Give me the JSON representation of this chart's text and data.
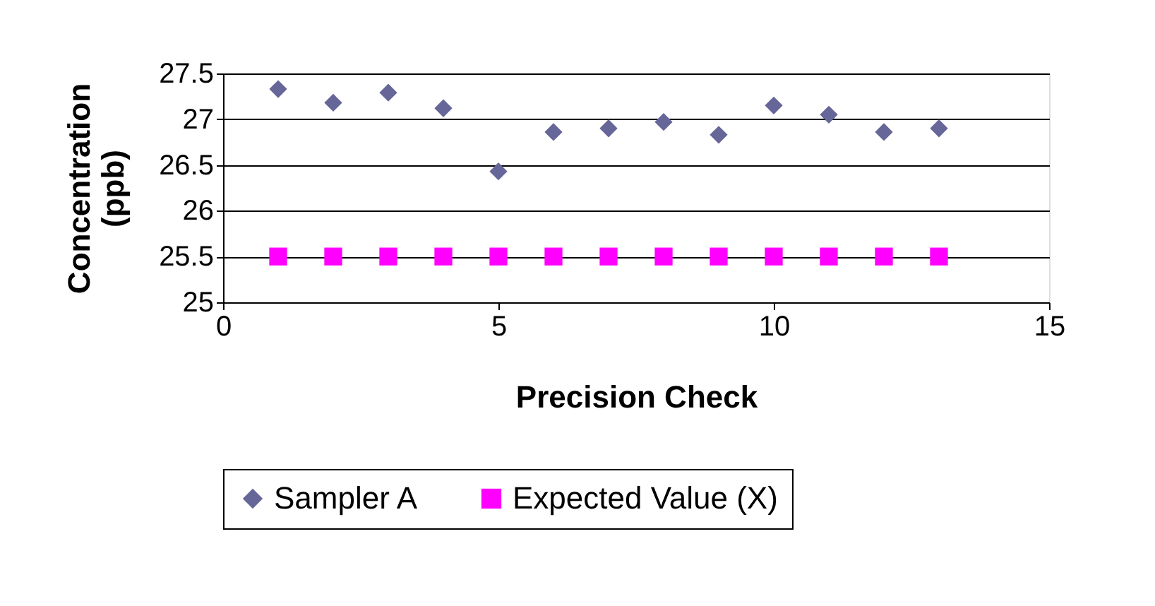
{
  "chart_data": {
    "type": "scatter",
    "xlabel": "Precision Check",
    "ylabel": "Concentration (ppb)",
    "x": [
      1,
      2,
      3,
      4,
      5,
      6,
      7,
      8,
      9,
      10,
      11,
      12,
      13
    ],
    "series": [
      {
        "name": "Sampler A",
        "color": "#666699",
        "marker": "diamond",
        "values": [
          27.33,
          27.18,
          27.29,
          27.12,
          26.43,
          26.86,
          26.9,
          26.97,
          26.83,
          27.15,
          27.05,
          26.86,
          26.9
        ]
      },
      {
        "name": "Expected Value (X)",
        "color": "#ff00ff",
        "marker": "square",
        "values": [
          25.5,
          25.5,
          25.5,
          25.5,
          25.5,
          25.5,
          25.5,
          25.5,
          25.5,
          25.5,
          25.5,
          25.5,
          25.5
        ]
      }
    ],
    "xlim": [
      0,
      15
    ],
    "xticks": [
      0,
      5,
      10,
      15
    ],
    "ylim": [
      25,
      27.5
    ],
    "yticks": [
      25,
      25.5,
      26,
      26.5,
      27,
      27.5
    ],
    "grid": "y",
    "legend": "bottom"
  }
}
